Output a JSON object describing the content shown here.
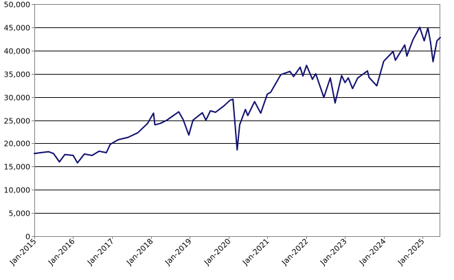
{
  "chart_data": {
    "type": "line",
    "title": "",
    "xlabel": "",
    "ylabel": "",
    "grid": "horizontal",
    "legend": "none",
    "colors": {
      "series": "#101070",
      "grid": "#000000",
      "axis": "#808080"
    },
    "ylim": [
      0,
      50000
    ],
    "yticks": [
      0,
      5000,
      10000,
      15000,
      20000,
      25000,
      30000,
      35000,
      40000,
      45000,
      50000
    ],
    "ytick_labels": [
      "0",
      "5,000",
      "10,000",
      "15,000",
      "20,000",
      "25,000",
      "30,000",
      "35,000",
      "40,000",
      "45,000",
      "50,000"
    ],
    "xlim": [
      "2015-01-01",
      "2025-06-15"
    ],
    "xtick_labels": [
      "Jan-2015",
      "Jan-2016",
      "Jan-2017",
      "Jan-2018",
      "Jan-2019",
      "Jan-2020",
      "Jan-2021",
      "Jan-2022",
      "Jan-2023",
      "Jan-2024",
      "Jan-2025"
    ],
    "xtick_dates": [
      "2015-01-01",
      "2016-01-01",
      "2017-01-01",
      "2018-01-01",
      "2019-01-01",
      "2020-01-01",
      "2021-01-01",
      "2022-01-01",
      "2023-01-01",
      "2024-01-01",
      "2025-01-01"
    ],
    "series": [
      {
        "x": [
          "2015-01-01",
          "2015-03-01",
          "2015-05-15",
          "2015-07-01",
          "2015-08-25",
          "2015-10-15",
          "2016-01-01",
          "2016-02-11",
          "2016-04-15",
          "2016-06-27",
          "2016-09-01",
          "2016-11-08",
          "2016-12-15",
          "2017-03-01",
          "2017-06-01",
          "2017-09-01",
          "2017-12-01",
          "2018-01-26",
          "2018-02-08",
          "2018-04-01",
          "2018-06-01",
          "2018-09-20",
          "2018-11-01",
          "2018-12-24",
          "2019-02-01",
          "2019-04-30",
          "2019-06-03",
          "2019-07-15",
          "2019-09-01",
          "2019-11-15",
          "2020-01-17",
          "2020-02-12",
          "2020-03-23",
          "2020-04-15",
          "2020-06-08",
          "2020-07-01",
          "2020-09-02",
          "2020-10-30",
          "2020-12-31",
          "2021-02-01",
          "2021-05-07",
          "2021-08-01",
          "2021-09-05",
          "2021-11-05",
          "2021-12-01",
          "2022-01-04",
          "2022-03-01",
          "2022-04-01",
          "2022-06-16",
          "2022-08-16",
          "2022-09-30",
          "2022-11-30",
          "2023-01-01",
          "2023-02-01",
          "2023-03-13",
          "2023-05-01",
          "2023-07-31",
          "2023-08-15",
          "2023-10-27",
          "2023-12-31",
          "2024-03-28",
          "2024-04-19",
          "2024-07-16",
          "2024-08-05",
          "2024-10-01",
          "2024-12-04",
          "2025-01-15",
          "2025-02-19",
          "2025-03-15",
          "2025-04-08",
          "2025-05-15",
          "2025-06-15"
        ],
        "values": [
          17800,
          18000,
          18200,
          17800,
          16000,
          17600,
          17400,
          15800,
          17700,
          17400,
          18300,
          18000,
          19800,
          20800,
          21300,
          22300,
          24300,
          26500,
          24000,
          24300,
          25000,
          26800,
          25100,
          21800,
          25000,
          26600,
          25000,
          27000,
          26700,
          28000,
          29300,
          29500,
          18600,
          24000,
          27300,
          26000,
          29000,
          26500,
          30600,
          31000,
          34800,
          35500,
          34400,
          36400,
          34500,
          36800,
          33800,
          35000,
          29900,
          34100,
          28700,
          34600,
          33100,
          34100,
          31800,
          34100,
          35600,
          34200,
          32400,
          37700,
          39800,
          37900,
          41200,
          38800,
          42300,
          45000,
          42100,
          44900,
          41800,
          37600,
          42100,
          42800
        ]
      }
    ]
  }
}
